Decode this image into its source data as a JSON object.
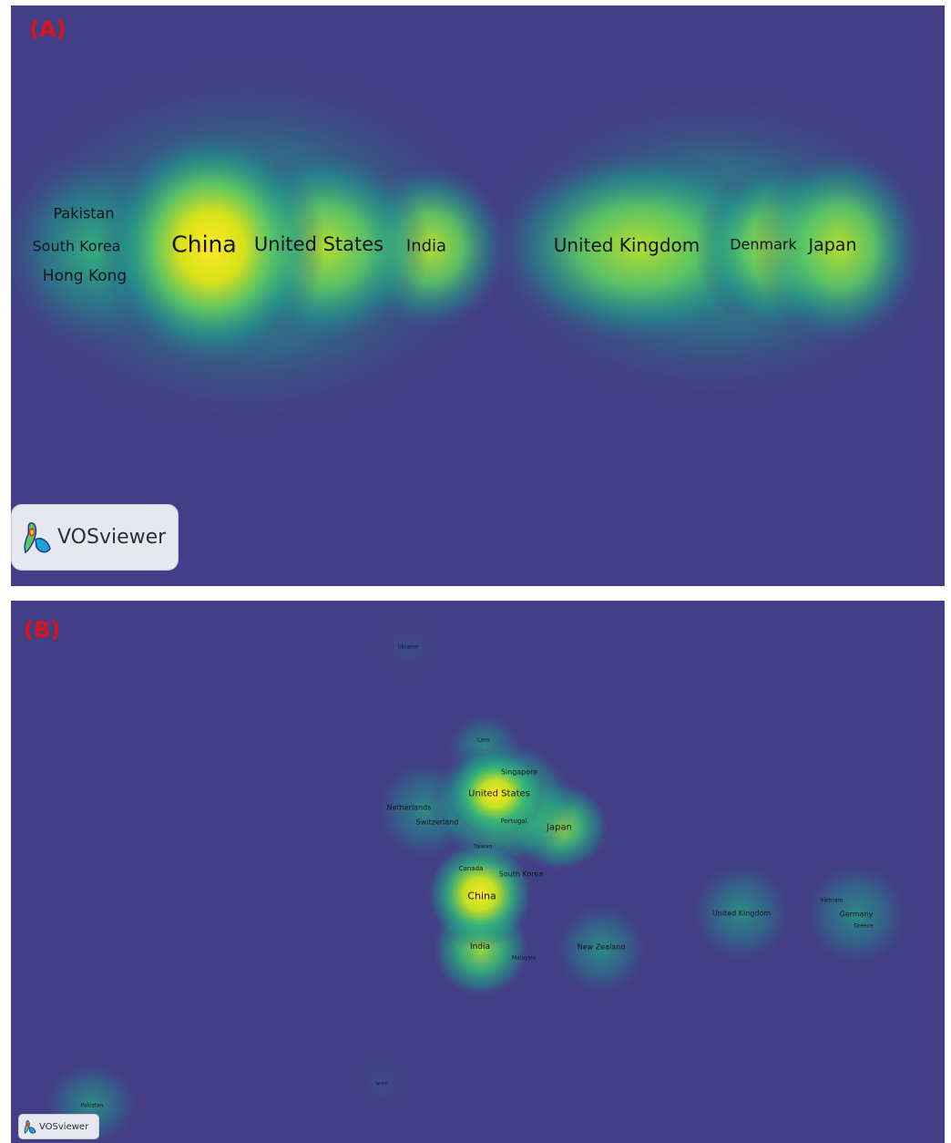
{
  "panel_a": {
    "label": "(A)",
    "logo_text": "VOSviewer",
    "nodes": [
      {
        "id": "pakistan",
        "label": "Pakistan"
      },
      {
        "id": "south-korea",
        "label": "South Korea"
      },
      {
        "id": "hong-kong",
        "label": "Hong Kong"
      },
      {
        "id": "china",
        "label": "China"
      },
      {
        "id": "united-states",
        "label": "United States"
      },
      {
        "id": "india",
        "label": "India"
      },
      {
        "id": "united-kingdom",
        "label": "United Kingdom"
      },
      {
        "id": "denmark",
        "label": "Denmark"
      },
      {
        "id": "japan",
        "label": "Japan"
      }
    ]
  },
  "panel_b": {
    "label": "(B)",
    "logo_text": "VOSviewer",
    "nodes": [
      {
        "id": "ukraine",
        "label": "Ukraine"
      },
      {
        "id": "laos",
        "label": "Laos"
      },
      {
        "id": "singapore",
        "label": "Singapore"
      },
      {
        "id": "united-states",
        "label": "United States"
      },
      {
        "id": "netherlands",
        "label": "Netherlands"
      },
      {
        "id": "switzerland",
        "label": "Switzerland"
      },
      {
        "id": "portugal",
        "label": "Portugal"
      },
      {
        "id": "japan",
        "label": "Japan"
      },
      {
        "id": "taiwan",
        "label": "Taiwan"
      },
      {
        "id": "canada",
        "label": "Canada"
      },
      {
        "id": "south-korea",
        "label": "South Korea"
      },
      {
        "id": "china",
        "label": "China"
      },
      {
        "id": "india",
        "label": "India"
      },
      {
        "id": "malaysia",
        "label": "Malaysia"
      },
      {
        "id": "new-zealand",
        "label": "New Zealand"
      },
      {
        "id": "united-kingdom",
        "label": "United Kingdom"
      },
      {
        "id": "vietnam",
        "label": "Vietnam"
      },
      {
        "id": "germany",
        "label": "Germany"
      },
      {
        "id": "greece",
        "label": "Greece"
      },
      {
        "id": "spain",
        "label": "Spain"
      },
      {
        "id": "pakistan",
        "label": "Pakistan"
      }
    ]
  },
  "colors": {
    "background": "#433e85",
    "low": "#21918c",
    "mid": "#5ec962",
    "high": "#fde725",
    "panel_label": "#d9151b"
  }
}
